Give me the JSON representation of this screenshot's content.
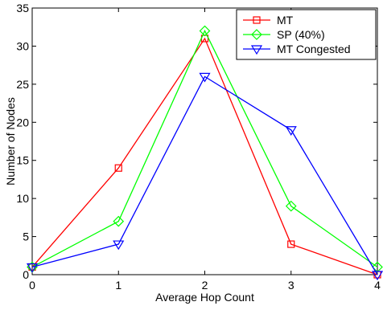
{
  "chart_data": {
    "type": "line",
    "x": [
      0,
      1,
      2,
      3,
      4
    ],
    "xlim": [
      0,
      4
    ],
    "ylim": [
      0,
      35
    ],
    "xticks": [
      0,
      1,
      2,
      3,
      4
    ],
    "yticks": [
      0,
      5,
      10,
      15,
      20,
      25,
      30,
      35
    ],
    "xlabel": "Average Hop Count",
    "ylabel": "Number of Nodes",
    "grid": false,
    "legend_position": "top-right",
    "series": [
      {
        "name": "MT",
        "color": "#ff0000",
        "marker": "square",
        "values": [
          1,
          14,
          31,
          4,
          0
        ]
      },
      {
        "name": "SP (40%)",
        "color": "#00ff00",
        "marker": "diamond",
        "values": [
          1,
          7,
          32,
          9,
          1
        ]
      },
      {
        "name": "MT Congested",
        "color": "#0000ff",
        "marker": "triangle-down",
        "values": [
          1,
          4,
          26,
          19,
          0
        ]
      }
    ]
  }
}
